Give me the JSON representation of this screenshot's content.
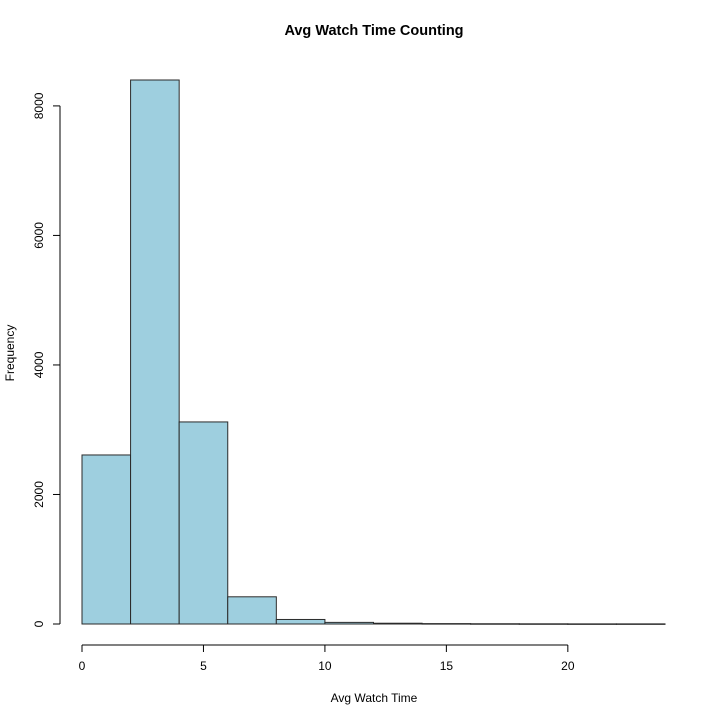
{
  "chart_data": {
    "type": "bar",
    "title": "Avg Watch Time Counting",
    "xlabel": "Avg Watch Time",
    "ylabel": "Frequency",
    "bins": [
      {
        "start": 0,
        "end": 2,
        "count": 2610
      },
      {
        "start": 2,
        "end": 4,
        "count": 8400
      },
      {
        "start": 4,
        "end": 6,
        "count": 3120
      },
      {
        "start": 6,
        "end": 8,
        "count": 420
      },
      {
        "start": 8,
        "end": 10,
        "count": 70
      },
      {
        "start": 10,
        "end": 12,
        "count": 25
      },
      {
        "start": 12,
        "end": 14,
        "count": 12
      },
      {
        "start": 14,
        "end": 16,
        "count": 6
      },
      {
        "start": 16,
        "end": 18,
        "count": 4
      },
      {
        "start": 18,
        "end": 20,
        "count": 3
      },
      {
        "start": 20,
        "end": 22,
        "count": 2
      },
      {
        "start": 22,
        "end": 24,
        "count": 2
      }
    ],
    "xlim": [
      0,
      24
    ],
    "ylim": [
      0,
      8400
    ],
    "xticks": [
      0,
      5,
      10,
      15,
      20
    ],
    "yticks": [
      0,
      2000,
      4000,
      6000,
      8000
    ],
    "bar_color": "#9ecfdf",
    "bar_edge_color": "#2a2a2a",
    "grid": false,
    "legend": "none"
  }
}
